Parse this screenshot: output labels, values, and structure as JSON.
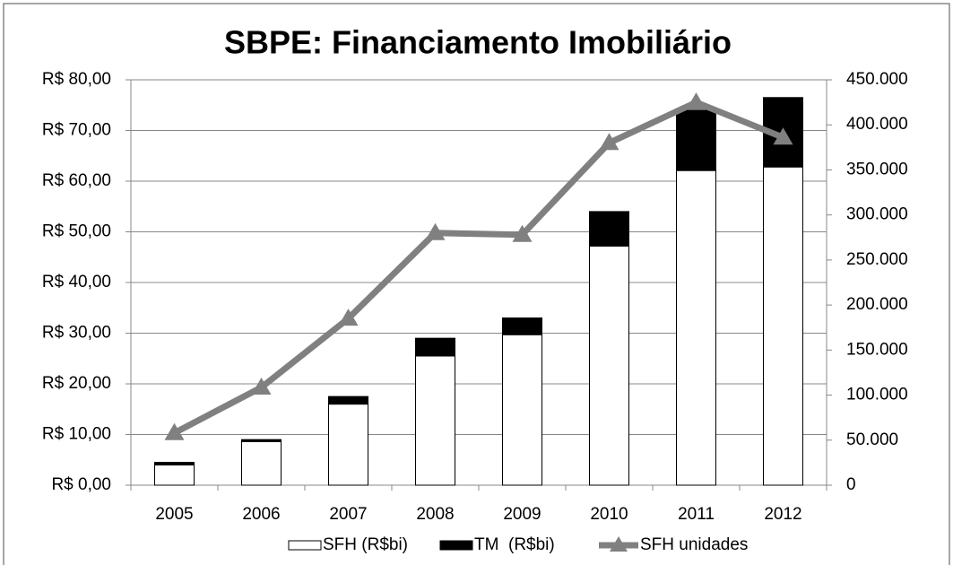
{
  "chart_data": {
    "type": "bar",
    "title": "SBPE: Financiamento Imobiliário",
    "categories": [
      "2005",
      "2006",
      "2007",
      "2008",
      "2009",
      "2010",
      "2011",
      "2012"
    ],
    "series": [
      {
        "name": "SFH (R$bi)",
        "color": "#ffffff",
        "type": "bar",
        "stack": true,
        "values": [
          4.0,
          8.6,
          16.0,
          25.5,
          29.7,
          47.2,
          62.1,
          62.8
        ]
      },
      {
        "name": "TM  (R$bi)",
        "color": "#000000",
        "type": "bar",
        "stack": true,
        "values": [
          0.5,
          0.4,
          1.5,
          3.5,
          3.3,
          6.8,
          11.9,
          13.7
        ]
      },
      {
        "name": "SFH unidades",
        "color": "#808080",
        "type": "line",
        "axis": "y2",
        "values": [
          58000,
          108500,
          185000,
          280000,
          278000,
          380000,
          425000,
          386000
        ]
      }
    ],
    "ylim": [
      0,
      80
    ],
    "yticks": [
      {
        "value": 0,
        "label": "R$ 0,00"
      },
      {
        "value": 10,
        "label": "R$ 10,00"
      },
      {
        "value": 20,
        "label": "R$ 20,00"
      },
      {
        "value": 30,
        "label": "R$ 30,00"
      },
      {
        "value": 40,
        "label": "R$ 40,00"
      },
      {
        "value": 50,
        "label": "R$ 50,00"
      },
      {
        "value": 60,
        "label": "R$ 60,00"
      },
      {
        "value": 70,
        "label": "R$ 70,00"
      },
      {
        "value": 80,
        "label": "R$ 80,00"
      }
    ],
    "y2lim": [
      0,
      450000
    ],
    "y2ticks": [
      0,
      {
        "value": 50000,
        "label": "50.000"
      },
      {
        "value": 100000,
        "label": "100.000"
      },
      {
        "value": 150000,
        "label": "150.000"
      },
      {
        "value": 200000,
        "label": "200.000"
      },
      {
        "value": 250000,
        "label": "250.000"
      },
      {
        "value": 300000,
        "label": "300.000"
      },
      {
        "value": 350000,
        "label": "350.000"
      },
      {
        "value": 400000,
        "label": "400.000"
      },
      {
        "value": 450000,
        "label": "450.000"
      }
    ],
    "grid": true,
    "legend": "bottom"
  }
}
